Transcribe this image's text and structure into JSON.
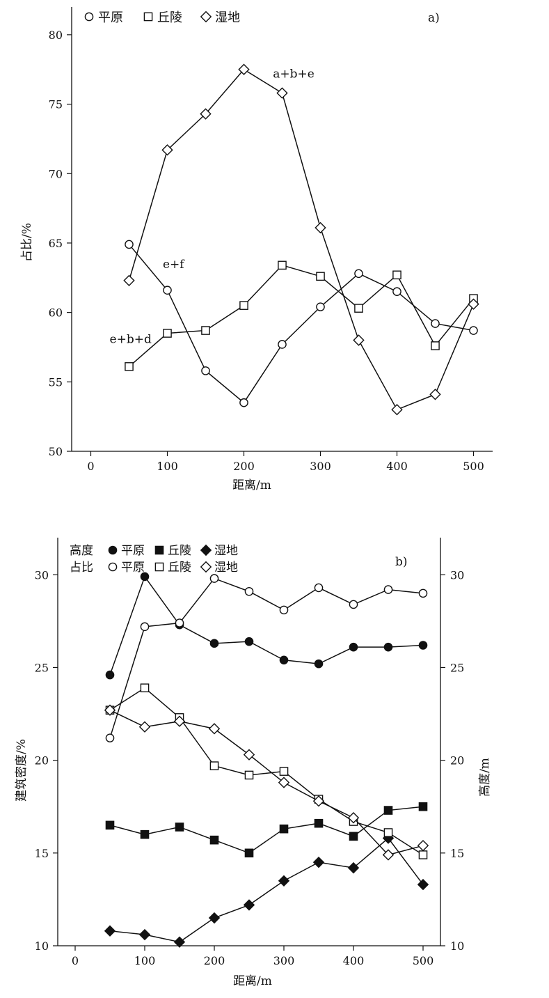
{
  "chart_data": [
    {
      "type": "line",
      "panel_label": "a)",
      "xlabel": "距离/m",
      "ylabel": "占比/%",
      "xlim": [
        -25,
        525
      ],
      "ylim": [
        50,
        82
      ],
      "xticks": [
        "0",
        "100",
        "200",
        "300",
        "400",
        "500"
      ],
      "yticks": [
        "50",
        "55",
        "60",
        "65",
        "70",
        "75",
        "80"
      ],
      "legend_position": "top-left",
      "legend": [
        {
          "name": "平原",
          "marker": "circle-open"
        },
        {
          "name": "丘陵",
          "marker": "square-open"
        },
        {
          "name": "湿地",
          "marker": "diamond-open"
        }
      ],
      "x": [
        50,
        100,
        150,
        200,
        250,
        300,
        350,
        400,
        450,
        500
      ],
      "series": [
        {
          "name": "平原",
          "marker": "circle-open",
          "values": [
            64.9,
            61.6,
            55.8,
            53.5,
            57.7,
            60.4,
            62.8,
            61.5,
            59.2,
            58.7
          ]
        },
        {
          "name": "丘陵",
          "marker": "square-open",
          "values": [
            56.1,
            58.5,
            58.7,
            60.5,
            63.4,
            62.6,
            60.3,
            62.7,
            57.6,
            61.0
          ]
        },
        {
          "name": "湿地",
          "marker": "diamond-open",
          "values": [
            62.3,
            71.7,
            74.3,
            77.5,
            75.8,
            66.1,
            58.0,
            53.0,
            54.1,
            60.6
          ]
        }
      ],
      "annotations": [
        {
          "text": "a+b+e",
          "x": 265,
          "y": 76.9
        },
        {
          "text": "e+f",
          "x": 108,
          "y": 63.2
        },
        {
          "text": "e+b+d",
          "x": 52,
          "y": 57.8
        }
      ]
    },
    {
      "type": "line",
      "panel_label": "b)",
      "xlabel": "距离/m",
      "ylabel": "建筑密度/%",
      "ylabel_right": "高度/m",
      "xlim": [
        -25,
        525
      ],
      "ylim": [
        10,
        32
      ],
      "xticks": [
        "0",
        "100",
        "200",
        "300",
        "400",
        "500"
      ],
      "yticks": [
        "10",
        "15",
        "20",
        "25",
        "30"
      ],
      "legend_position": "top-left",
      "legend_rows": [
        {
          "label": "高度",
          "items": [
            {
              "name": "平原",
              "marker": "circle-filled"
            },
            {
              "name": "丘陵",
              "marker": "square-filled"
            },
            {
              "name": "湿地",
              "marker": "diamond-filled"
            }
          ]
        },
        {
          "label": "占比",
          "items": [
            {
              "name": "平原",
              "marker": "circle-open"
            },
            {
              "name": "丘陵",
              "marker": "square-open"
            },
            {
              "name": "湿地",
              "marker": "diamond-open"
            }
          ]
        }
      ],
      "x": [
        50,
        100,
        150,
        200,
        250,
        300,
        350,
        400,
        450,
        500
      ],
      "series": [
        {
          "name": "平原",
          "group": "高度",
          "marker": "circle-filled",
          "values": [
            24.6,
            29.9,
            27.3,
            26.3,
            26.4,
            25.4,
            25.2,
            26.1,
            26.1,
            26.2
          ]
        },
        {
          "name": "丘陵",
          "group": "高度",
          "marker": "square-filled",
          "values": [
            16.5,
            16.0,
            16.4,
            15.7,
            15.0,
            16.3,
            16.6,
            15.9,
            17.3,
            17.5
          ]
        },
        {
          "name": "湿地",
          "group": "高度",
          "marker": "diamond-filled",
          "values": [
            10.8,
            10.6,
            10.2,
            11.5,
            12.2,
            13.5,
            14.5,
            14.2,
            15.8,
            13.3
          ]
        },
        {
          "name": "平原",
          "group": "占比",
          "marker": "circle-open",
          "values": [
            21.2,
            27.2,
            27.4,
            29.8,
            29.1,
            28.1,
            29.3,
            28.4,
            29.2,
            29.0
          ]
        },
        {
          "name": "丘陵",
          "group": "占比",
          "marker": "square-open",
          "values": [
            22.7,
            23.9,
            22.3,
            19.7,
            19.2,
            19.4,
            17.9,
            16.7,
            16.1,
            14.9
          ]
        },
        {
          "name": "湿地",
          "group": "占比",
          "marker": "diamond-open",
          "values": [
            22.7,
            21.8,
            22.1,
            21.7,
            20.3,
            18.8,
            17.8,
            16.9,
            14.9,
            15.4
          ]
        }
      ]
    }
  ]
}
